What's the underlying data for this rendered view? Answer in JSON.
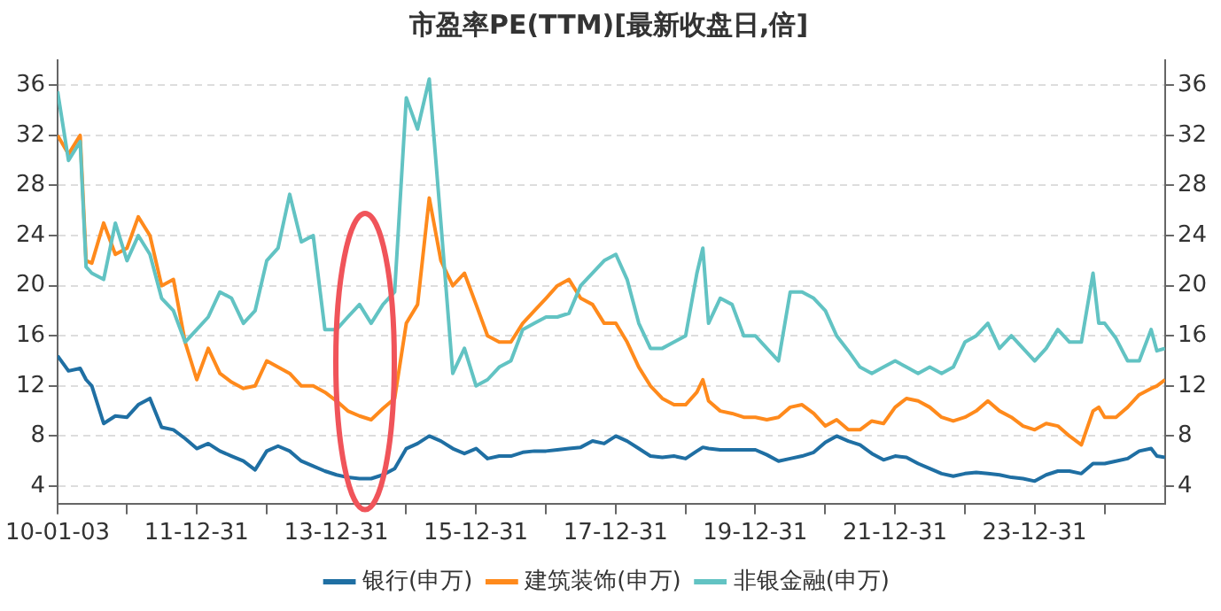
{
  "chart_data": {
    "type": "line",
    "title": "市盈率PE(TTM)[最新收盘日,倍]",
    "x": [
      "2010-01-03",
      "2010-03",
      "2010-05",
      "2010-06",
      "2010-07",
      "2010-09",
      "2010-11",
      "2011-01",
      "2011-03",
      "2011-05",
      "2011-07",
      "2011-09",
      "2011-11",
      "2012-01",
      "2012-03",
      "2012-05",
      "2012-07",
      "2012-09",
      "2012-11",
      "2013-01",
      "2013-03",
      "2013-05",
      "2013-07",
      "2013-09",
      "2013-11",
      "2014-01",
      "2014-03",
      "2014-05",
      "2014-07",
      "2014-09",
      "2014-11",
      "2015-01",
      "2015-03",
      "2015-05",
      "2015-07",
      "2015-09",
      "2015-11",
      "2016-01",
      "2016-03",
      "2016-05",
      "2016-07",
      "2016-09",
      "2016-11",
      "2017-01",
      "2017-03",
      "2017-05",
      "2017-07",
      "2017-09",
      "2017-11",
      "2018-01",
      "2018-03",
      "2018-05",
      "2018-07",
      "2018-09",
      "2018-11",
      "2019-01",
      "2019-03",
      "2019-04",
      "2019-05",
      "2019-07",
      "2019-09",
      "2019-11",
      "2020-01",
      "2020-03",
      "2020-05",
      "2020-07",
      "2020-09",
      "2020-11",
      "2021-01",
      "2021-03",
      "2021-05",
      "2021-07",
      "2021-09",
      "2021-11",
      "2022-01",
      "2022-03",
      "2022-05",
      "2022-07",
      "2022-09",
      "2022-11",
      "2023-01",
      "2023-03",
      "2023-05",
      "2023-07",
      "2023-09",
      "2023-11",
      "2024-01",
      "2024-03",
      "2024-05",
      "2024-07",
      "2024-09",
      "2024-11",
      "2024-12",
      "2025-01",
      "2025-03",
      "2025-05",
      "2025-07",
      "2025-09",
      "2025-10",
      "2025-11-13"
    ],
    "series": [
      {
        "name": "银行(申万)",
        "color": "#1f6fa3",
        "values": [
          14.4,
          13.2,
          13.4,
          12.5,
          12,
          9,
          9.6,
          9.5,
          10.5,
          11,
          8.7,
          8.5,
          7.8,
          7,
          7.4,
          6.8,
          6.4,
          6,
          5.3,
          6.8,
          7.2,
          6.8,
          6,
          5.6,
          5.2,
          4.9,
          4.7,
          4.6,
          4.6,
          4.9,
          5.4,
          7,
          7.4,
          8,
          7.6,
          7,
          6.6,
          7,
          6.2,
          6.4,
          6.4,
          6.7,
          6.8,
          6.8,
          6.9,
          7,
          7.1,
          7.6,
          7.4,
          8,
          7.6,
          7,
          6.4,
          6.3,
          6.4,
          6.2,
          6.8,
          7.1,
          7,
          6.9,
          6.9,
          6.9,
          6.9,
          6.5,
          6,
          6.2,
          6.4,
          6.7,
          7.5,
          8,
          7.6,
          7.3,
          6.6,
          6.1,
          6.4,
          6.3,
          5.8,
          5.4,
          5,
          4.8,
          5,
          5.1,
          5,
          4.9,
          4.7,
          4.6,
          4.4,
          4.9,
          5.2,
          5.2,
          5,
          5.8,
          5.8,
          5.8,
          6,
          6.2,
          6.8,
          7,
          6.4,
          6.3
        ]
      },
      {
        "name": "建筑装饰(申万)",
        "color": "#ff8a1c",
        "values": [
          32,
          30.5,
          32,
          22,
          21.8,
          25,
          22.5,
          23,
          25.5,
          24,
          20,
          20.5,
          15.5,
          12.5,
          15,
          13,
          12.3,
          11.8,
          12,
          14,
          13.5,
          13,
          12,
          12,
          11.5,
          10.8,
          10,
          9.6,
          9.3,
          10.2,
          11,
          17,
          18.5,
          27,
          22,
          20,
          21,
          18.5,
          16,
          15.5,
          15.5,
          17,
          18,
          19,
          20,
          20.5,
          19,
          18.5,
          17,
          17,
          15.5,
          13.5,
          12,
          11,
          10.5,
          10.5,
          11.5,
          12.5,
          10.8,
          10,
          9.8,
          9.5,
          9.5,
          9.3,
          9.5,
          10.3,
          10.5,
          9.8,
          8.8,
          9.3,
          8.5,
          8.5,
          9.2,
          9,
          10.3,
          11,
          10.8,
          10.3,
          9.5,
          9.2,
          9.5,
          10,
          10.8,
          10,
          9.5,
          8.8,
          8.5,
          9,
          8.8,
          8,
          7.3,
          10,
          10.3,
          9.5,
          9.5,
          10.3,
          11.3,
          11.8,
          12,
          12.5
        ]
      },
      {
        "name": "非银金融(申万)",
        "color": "#62c3c3",
        "values": [
          35.5,
          30,
          31.5,
          21.5,
          21,
          20.5,
          25,
          22,
          24,
          22.5,
          19,
          18,
          15.5,
          16.5,
          17.5,
          19.5,
          19,
          17,
          18,
          22,
          23,
          27.3,
          23.5,
          24,
          16.5,
          16.5,
          17.5,
          18.5,
          17,
          18.5,
          19.5,
          35,
          32.5,
          36.5,
          25,
          13,
          15,
          12,
          12.5,
          13.5,
          14,
          16.5,
          17,
          17.5,
          17.5,
          17.8,
          20,
          21,
          22,
          22.5,
          20.5,
          17,
          15,
          15,
          15.5,
          16,
          21,
          23,
          17,
          19,
          18.5,
          16,
          16,
          15,
          14,
          19.5,
          19.5,
          19,
          18,
          16,
          14.8,
          13.5,
          13,
          13.5,
          14,
          13.5,
          13,
          13.5,
          13,
          13.5,
          15.5,
          16,
          17,
          15,
          16,
          15,
          14,
          15,
          16.5,
          15.5,
          15.5,
          21,
          17,
          17,
          15.8,
          14,
          14,
          16.5,
          14.8,
          15
        ]
      }
    ],
    "xlim": [
      "2010-01-03",
      "2025-11-13"
    ],
    "xticks": [
      {
        "value": "2010-01-03",
        "label": "10-01-03"
      },
      {
        "value": "2010-12-31",
        "label": null
      },
      {
        "value": "2011-12-31",
        "label": "11-12-31"
      },
      {
        "value": "2012-12-31",
        "label": null
      },
      {
        "value": "2013-12-31",
        "label": "13-12-31"
      },
      {
        "value": "2014-12-31",
        "label": null
      },
      {
        "value": "2015-12-31",
        "label": "15-12-31"
      },
      {
        "value": "2016-12-31",
        "label": null
      },
      {
        "value": "2017-12-31",
        "label": "17-12-31"
      },
      {
        "value": "2018-12-31",
        "label": null
      },
      {
        "value": "2019-12-31",
        "label": "19-12-31"
      },
      {
        "value": "2020-12-31",
        "label": null
      },
      {
        "value": "2021-12-31",
        "label": "21-12-31"
      },
      {
        "value": "2022-12-31",
        "label": null
      },
      {
        "value": "2023-12-31",
        "label": "23-12-31"
      },
      {
        "value": "2024-12-31",
        "label": null
      }
    ],
    "ylim": [
      2.6,
      38
    ],
    "yticks": [
      4,
      8,
      12,
      16,
      20,
      24,
      28,
      32,
      36
    ],
    "y2lim": [
      2.6,
      38
    ],
    "y2ticks": [
      4,
      8,
      12,
      16,
      20,
      24,
      28,
      32,
      36
    ],
    "grid": "y",
    "legend": "bottom",
    "marker": "none",
    "line_style": "solid"
  }
}
